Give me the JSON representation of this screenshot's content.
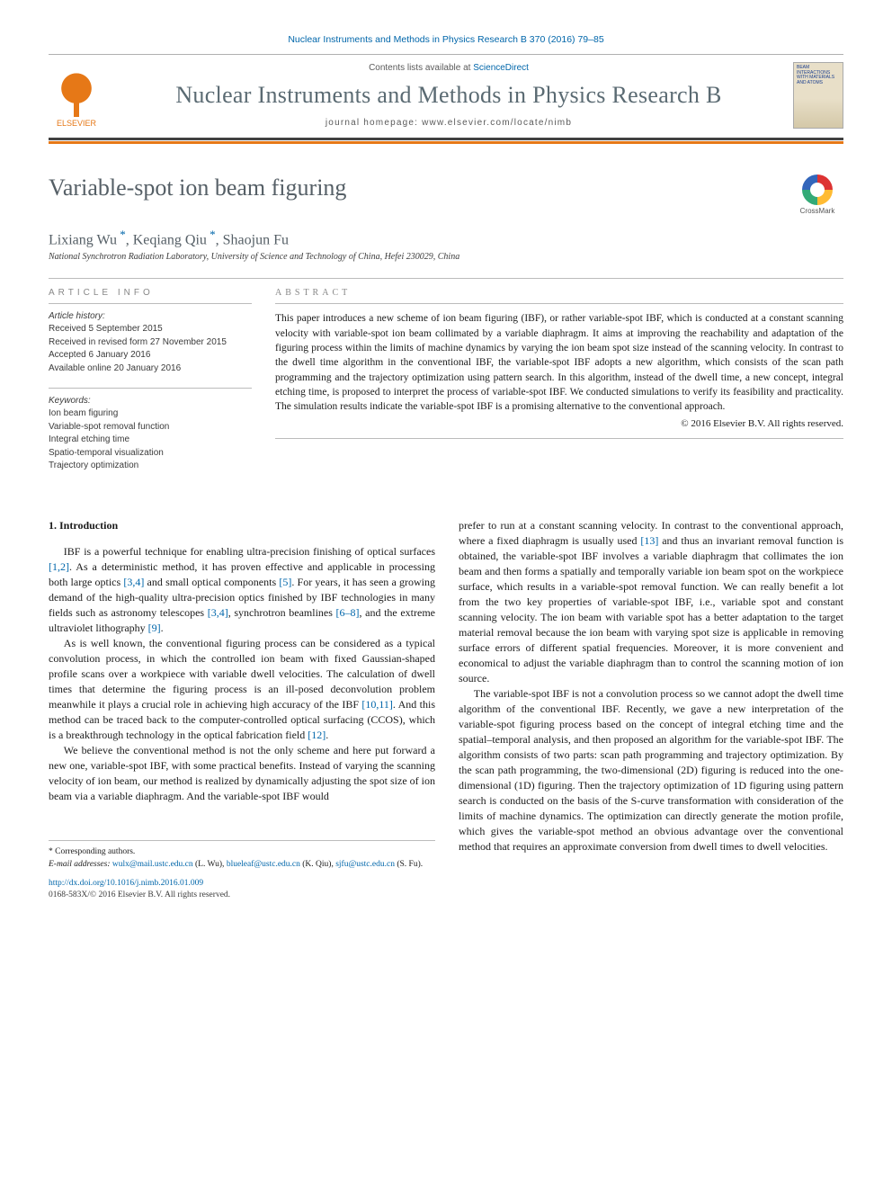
{
  "top_ref": "Nuclear Instruments and Methods in Physics Research B 370 (2016) 79–85",
  "header": {
    "contents_prefix": "Contents lists available at ",
    "contents_link": "ScienceDirect",
    "journal": "Nuclear Instruments and Methods in Physics Research B",
    "homepage_prefix": "journal homepage: ",
    "homepage": "www.elsevier.com/locate/nimb",
    "publisher": "ELSEVIER",
    "cover_text": "BEAM INTERACTIONS WITH MATERIALS AND ATOMS"
  },
  "crossmark": "CrossMark",
  "title": "Variable-spot ion beam figuring",
  "authors_html": "Lixiang Wu *, Keqiang Qiu *, Shaojun Fu",
  "authors": [
    {
      "name": "Lixiang Wu",
      "corr": true
    },
    {
      "name": "Keqiang Qiu",
      "corr": true
    },
    {
      "name": "Shaojun Fu",
      "corr": false
    }
  ],
  "affiliation": "National Synchrotron Radiation Laboratory, University of Science and Technology of China, Hefei 230029, China",
  "info": {
    "head": "ARTICLE INFO",
    "history_label": "Article history:",
    "history": [
      "Received 5 September 2015",
      "Received in revised form 27 November 2015",
      "Accepted 6 January 2016",
      "Available online 20 January 2016"
    ],
    "kw_label": "Keywords:",
    "keywords": [
      "Ion beam figuring",
      "Variable-spot removal function",
      "Integral etching time",
      "Spatio-temporal visualization",
      "Trajectory optimization"
    ]
  },
  "abstract": {
    "head": "ABSTRACT",
    "text": "This paper introduces a new scheme of ion beam figuring (IBF), or rather variable-spot IBF, which is conducted at a constant scanning velocity with variable-spot ion beam collimated by a variable diaphragm. It aims at improving the reachability and adaptation of the figuring process within the limits of machine dynamics by varying the ion beam spot size instead of the scanning velocity. In contrast to the dwell time algorithm in the conventional IBF, the variable-spot IBF adopts a new algorithm, which consists of the scan path programming and the trajectory optimization using pattern search. In this algorithm, instead of the dwell time, a new concept, integral etching time, is proposed to interpret the process of variable-spot IBF. We conducted simulations to verify its feasibility and practicality. The simulation results indicate the variable-spot IBF is a promising alternative to the conventional approach.",
    "copyright": "© 2016 Elsevier B.V. All rights reserved."
  },
  "section1": {
    "head": "1. Introduction",
    "p1a": "IBF is a powerful technique for enabling ultra-precision finishing of optical surfaces ",
    "c1": "[1,2]",
    "p1b": ". As a deterministic method, it has proven effective and applicable in processing both large optics ",
    "c2": "[3,4]",
    "p1c": " and small optical components ",
    "c3": "[5]",
    "p1d": ". For years, it has seen a growing demand of the high-quality ultra-precision optics finished by IBF technologies in many fields such as astronomy telescopes ",
    "c4": "[3,4]",
    "p1e": ", synchrotron beamlines ",
    "c5": "[6–8]",
    "p1f": ", and the extreme ultraviolet lithography ",
    "c6": "[9]",
    "p1g": ".",
    "p2a": "As is well known, the conventional figuring process can be considered as a typical convolution process, in which the controlled ion beam with fixed Gaussian-shaped profile scans over a workpiece with variable dwell velocities. The calculation of dwell times that determine the figuring process is an ill-posed deconvolution problem meanwhile it plays a crucial role in achieving high accuracy of the IBF ",
    "c7": "[10,11]",
    "p2b": ". And this method can be traced back to the computer-controlled optical surfacing (CCOS), which is a breakthrough technology in the optical fabrication field ",
    "c8": "[12]",
    "p2c": ".",
    "p3": "We believe the conventional method is not the only scheme and here put forward a new one, variable-spot IBF, with some practical benefits. Instead of varying the scanning velocity of ion beam, our method is realized by dynamically adjusting the spot size of ion beam via a variable diaphragm. And the variable-spot IBF would",
    "p4a": "prefer to run at a constant scanning velocity. In contrast to the conventional approach, where a fixed diaphragm is usually used ",
    "c9": "[13]",
    "p4b": " and thus an invariant removal function is obtained, the variable-spot IBF involves a variable diaphragm that collimates the ion beam and then forms a spatially and temporally variable ion beam spot on the workpiece surface, which results in a variable-spot removal function. We can really benefit a lot from the two key properties of variable-spot IBF, i.e., variable spot and constant scanning velocity. The ion beam with variable spot has a better adaptation to the target material removal because the ion beam with varying spot size is applicable in removing surface errors of different spatial frequencies. Moreover, it is more convenient and economical to adjust the variable diaphragm than to control the scanning motion of ion source.",
    "p5": "The variable-spot IBF is not a convolution process so we cannot adopt the dwell time algorithm of the conventional IBF. Recently, we gave a new interpretation of the variable-spot figuring process based on the concept of integral etching time and the spatial–temporal analysis, and then proposed an algorithm for the variable-spot IBF. The algorithm consists of two parts: scan path programming and trajectory optimization. By the scan path programming, the two-dimensional (2D) figuring is reduced into the one-dimensional (1D) figuring. Then the trajectory optimization of 1D figuring using pattern search is conducted on the basis of the S-curve transformation with consideration of the limits of machine dynamics. The optimization can directly generate the motion profile, which gives the variable-spot method an obvious advantage over the conventional method that requires an approximate conversion from dwell times to dwell velocities."
  },
  "footnotes": {
    "corr": "* Corresponding authors.",
    "email_label": "E-mail addresses: ",
    "emails": [
      {
        "addr": "wulx@mail.ustc.edu.cn",
        "who": " (L. Wu), "
      },
      {
        "addr": "blueleaf@ustc.edu.cn",
        "who": " (K. Qiu), "
      },
      {
        "addr": "sjfu@ustc.edu.cn",
        "who": " (S. Fu)."
      }
    ],
    "doi": "http://dx.doi.org/10.1016/j.nimb.2016.01.009",
    "issn": "0168-583X/© 2016 Elsevier B.V. All rights reserved."
  },
  "colors": {
    "link": "#0066aa",
    "orange": "#e67817",
    "gray_text": "#555f66",
    "rule": "#bcbcbc"
  }
}
